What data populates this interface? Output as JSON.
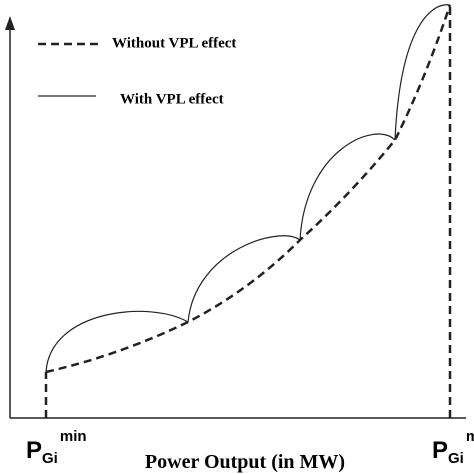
{
  "legend": [
    {
      "label": "Without VPL effect"
    },
    {
      "label": "With VPL effect"
    }
  ],
  "x_axis": {
    "title": "Power Output (in MW)",
    "min_label": {
      "base": "P",
      "sub": "Gi",
      "sup": "min"
    },
    "max_label": {
      "base": "P",
      "sub": "Gi",
      "sup": "max"
    }
  }
}
